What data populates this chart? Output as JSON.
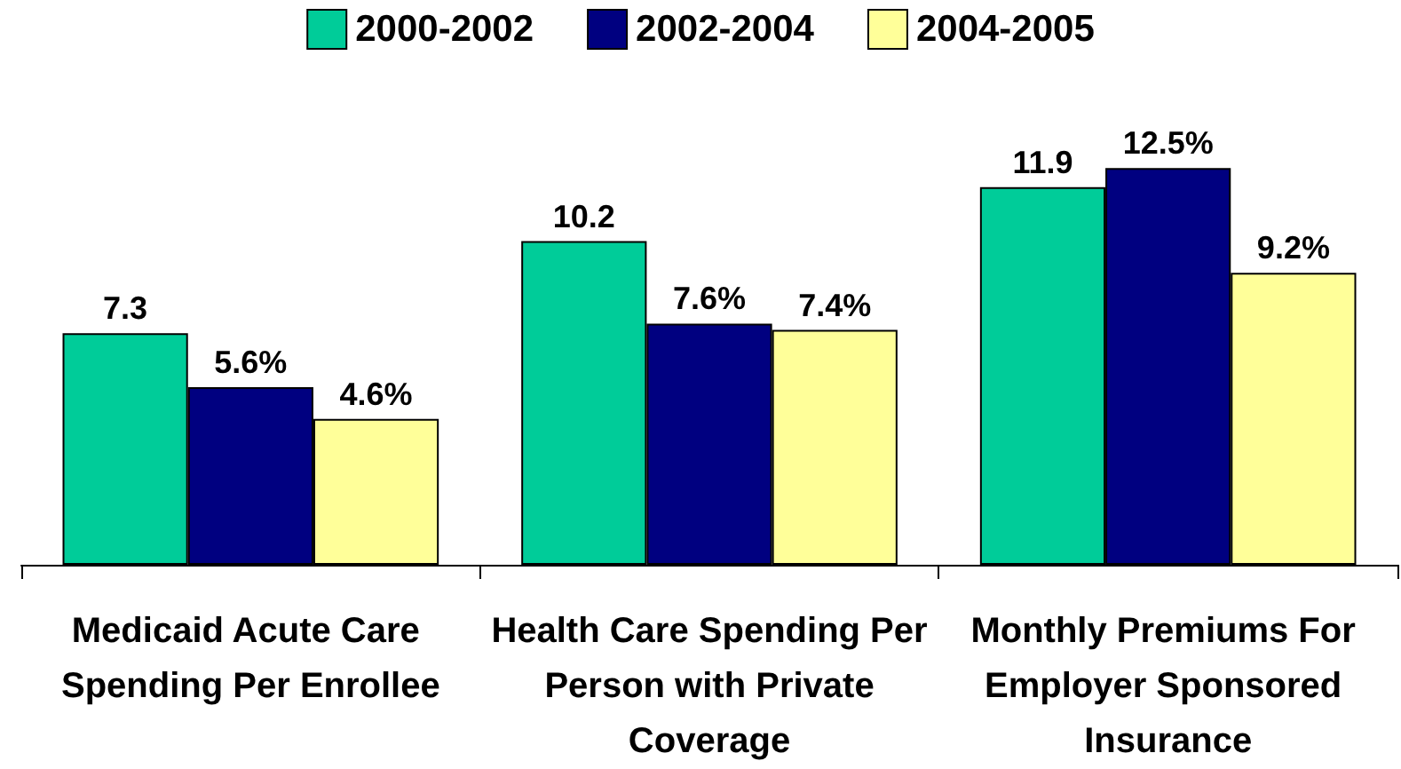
{
  "chart_data": {
    "type": "bar",
    "categories": [
      "Medicaid Acute Care Spending Per Enrollee",
      "Health Care Spending Per Person with Private Coverage",
      "Monthly Premiums For Employer Sponsored Insurance"
    ],
    "series": [
      {
        "name": "2000-2002",
        "color": "#00cc99",
        "values": [
          7.3,
          10.2,
          11.9
        ],
        "value_labels": [
          "7.3",
          "10.2",
          "11.9"
        ]
      },
      {
        "name": "2002-2004",
        "color": "#000080",
        "values": [
          5.6,
          7.6,
          12.5
        ],
        "value_labels": [
          "5.6%",
          "7.6%",
          "12.5%"
        ]
      },
      {
        "name": "2004-2005",
        "color": "#ffff99",
        "values": [
          4.6,
          7.4,
          9.2
        ],
        "value_labels": [
          "4.6%",
          "7.4%",
          "9.2%"
        ]
      }
    ],
    "legend": "top",
    "grid": false
  }
}
